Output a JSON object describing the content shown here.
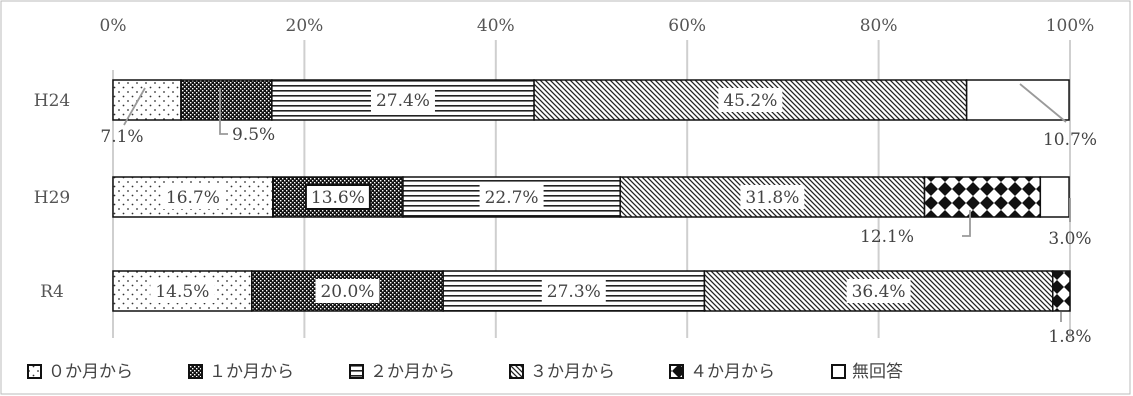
{
  "chart_data": {
    "type": "bar",
    "orientation": "horizontal",
    "stacked": true,
    "percent_stacked": true,
    "categories": [
      "H24",
      "H29",
      "R4"
    ],
    "series": [
      {
        "name": "０か月から",
        "values": [
          7.1,
          16.7,
          14.5
        ],
        "value_labels": [
          "7.1%",
          "16.7%",
          "14.5%"
        ]
      },
      {
        "name": "１か月から",
        "values": [
          9.5,
          13.6,
          20.0
        ],
        "value_labels": [
          "9.5%",
          "13.6%",
          "20.0%"
        ]
      },
      {
        "name": "２か月から",
        "values": [
          27.4,
          22.7,
          27.3
        ],
        "value_labels": [
          "27.4%",
          "22.7%",
          "27.3%"
        ]
      },
      {
        "name": "３か月から",
        "values": [
          45.2,
          31.8,
          36.4
        ],
        "value_labels": [
          "45.2%",
          "31.8%",
          "36.4%"
        ]
      },
      {
        "name": "４か月から",
        "values": [
          0,
          12.1,
          1.8
        ],
        "value_labels": [
          "",
          "12.1%",
          "1.8%"
        ]
      },
      {
        "name": "無回答",
        "values": [
          10.7,
          3.0,
          0
        ],
        "value_labels": [
          "10.7%",
          "3.0%",
          ""
        ]
      }
    ],
    "xlim": [
      0,
      100
    ],
    "x_ticks": [
      "0%",
      "20%",
      "40%",
      "60%",
      "80%",
      "100%"
    ],
    "grid": true,
    "legend_position": "bottom",
    "title": "",
    "xlabel": "",
    "ylabel": ""
  }
}
